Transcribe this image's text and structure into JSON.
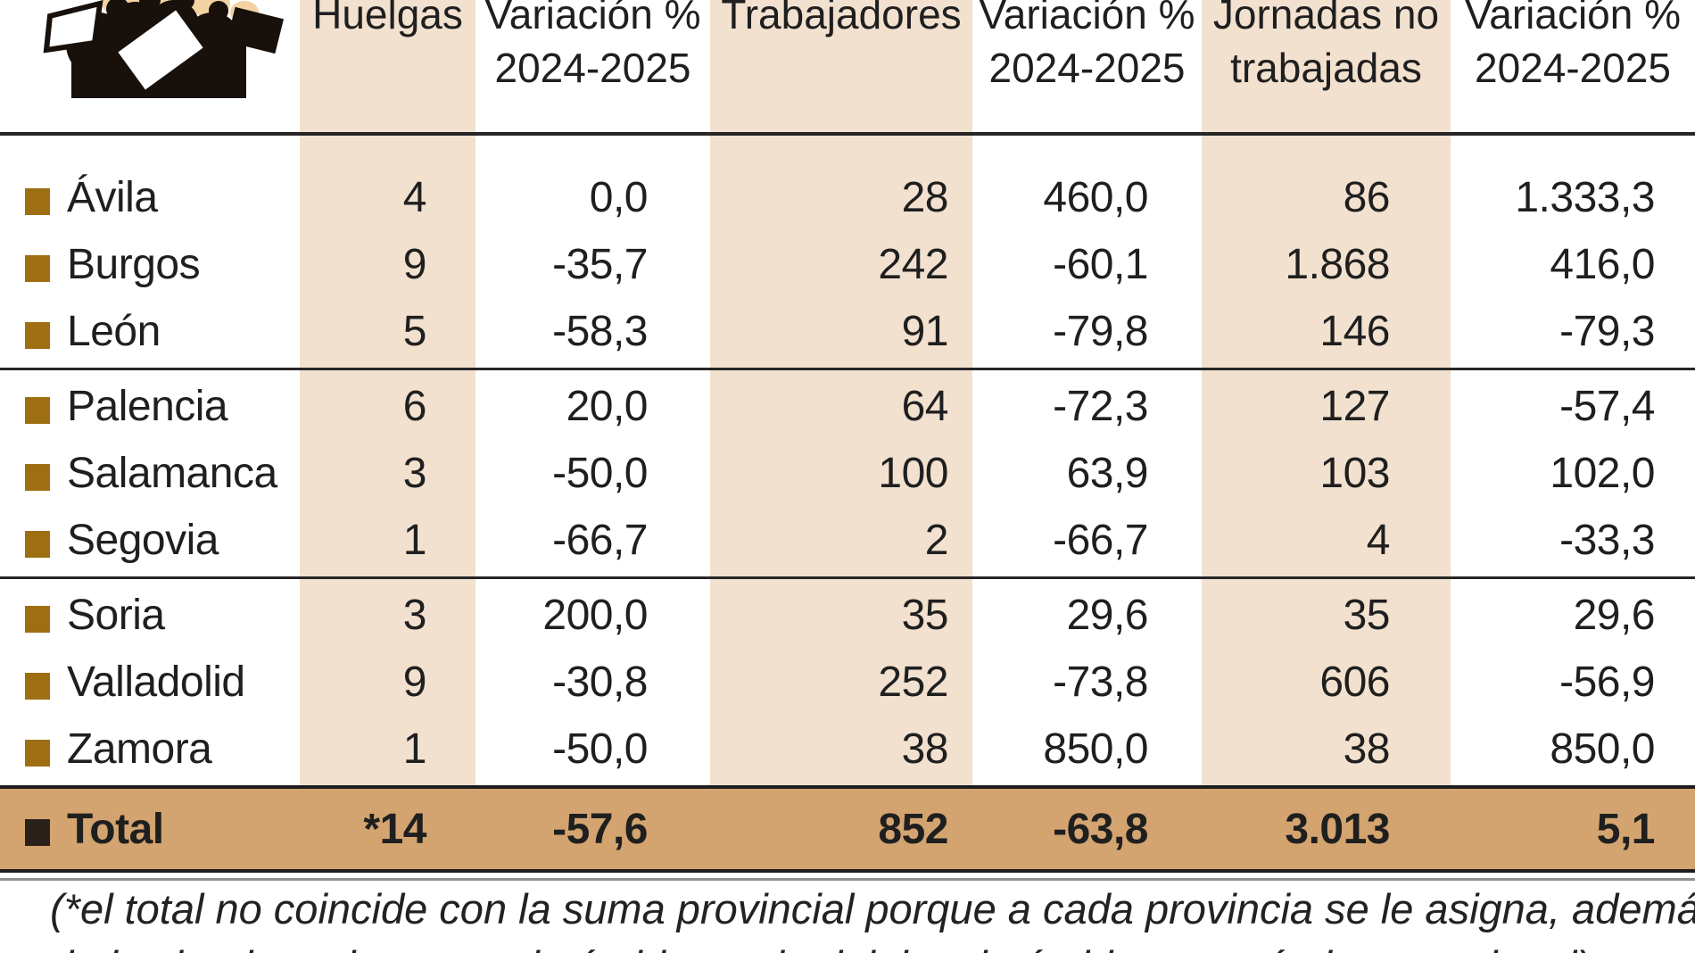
{
  "chart_data": {
    "type": "table",
    "columns": [
      "",
      "Huelgas",
      "Variación % 2024-2025",
      "Trabajadores",
      "Variación % 2024-2025",
      "Jornadas no trabajadas",
      "Variación % 2024-2025"
    ],
    "header_cells": [
      {
        "line1": "Huelgas",
        "line2": ""
      },
      {
        "line1": "Variación %",
        "line2": "2024-2025"
      },
      {
        "line1": "Trabajadores",
        "line2": ""
      },
      {
        "line1": "Variación %",
        "line2": "2024-2025"
      },
      {
        "line1": "Jornadas no",
        "line2": "trabajadas"
      },
      {
        "line1": "Variación %",
        "line2": "2024-2025"
      }
    ],
    "rows": [
      {
        "province": "Ávila",
        "values": [
          "4",
          "0,0",
          "28",
          "460,0",
          "86",
          "1.333,3"
        ]
      },
      {
        "province": "Burgos",
        "values": [
          "9",
          "-35,7",
          "242",
          "-60,1",
          "1.868",
          "416,0"
        ]
      },
      {
        "province": "León",
        "values": [
          "5",
          "-58,3",
          "91",
          "-79,8",
          "146",
          "-79,3"
        ]
      },
      {
        "province": "Palencia",
        "values": [
          "6",
          "20,0",
          "64",
          "-72,3",
          "127",
          "-57,4"
        ]
      },
      {
        "province": "Salamanca",
        "values": [
          "3",
          "-50,0",
          "100",
          "63,9",
          "103",
          "102,0"
        ]
      },
      {
        "province": "Segovia",
        "values": [
          "1",
          "-66,7",
          "2",
          "-66,7",
          "4",
          "-33,3"
        ]
      },
      {
        "province": "Soria",
        "values": [
          "3",
          "200,0",
          "35",
          "29,6",
          "35",
          "29,6"
        ]
      },
      {
        "province": "Valladolid",
        "values": [
          "9",
          "-30,8",
          "252",
          "-73,8",
          "606",
          "-56,9"
        ]
      },
      {
        "province": "Zamora",
        "values": [
          "1",
          "-50,0",
          "38",
          "850,0",
          "38",
          "850,0"
        ]
      }
    ],
    "total": {
      "label": "Total",
      "values": [
        "*14",
        "-57,6",
        "852",
        "-63,8",
        "3.013",
        "5,1"
      ]
    },
    "footnote": {
      "line1": "(*el total no coincide con la suma provincial porque a cada provincia se le asigna, además",
      "line2": "de las huelgas de su propio ámbito territorial, las de ámbito autonómico y nacional)"
    }
  },
  "layout": {
    "group_breaks": [
      2,
      5
    ]
  },
  "icon": "protest-crowd-icon",
  "colors": {
    "stripe": "#f2e1cf",
    "total_background": "#d3a46f",
    "row_bullet": "#9d6f12",
    "total_bullet": "#2a211a",
    "text": "#1f1f1f",
    "rule": "#262626",
    "skin_tone": "#f3d3a2"
  }
}
